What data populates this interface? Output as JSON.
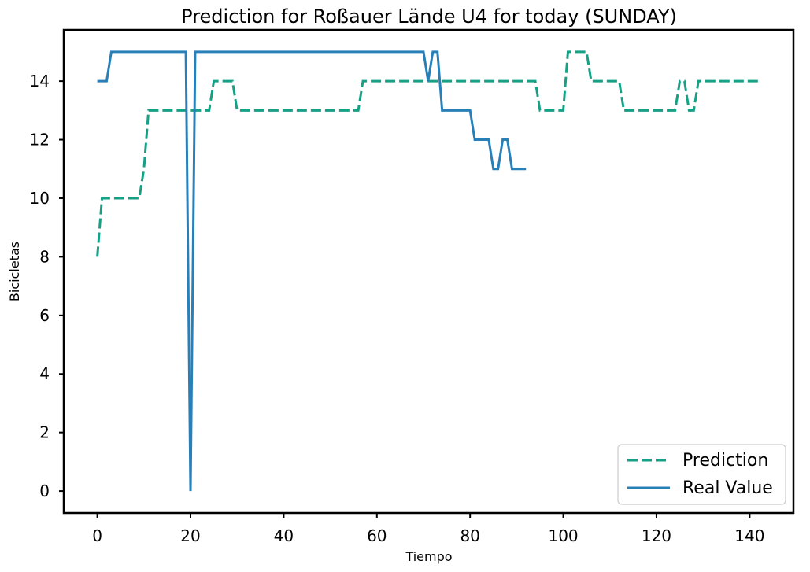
{
  "chart_data": {
    "type": "line",
    "title": "Prediction for Roßauer Lände U4 for today (SUNDAY)",
    "xlabel": "Tiempo",
    "ylabel": "Bicicletas",
    "xlim": [
      -7.2,
      149.4
    ],
    "ylim": [
      -0.75,
      15.75
    ],
    "xticks": [
      0,
      20,
      40,
      60,
      80,
      100,
      120,
      140
    ],
    "yticks": [
      0,
      2,
      4,
      6,
      8,
      10,
      12,
      14
    ],
    "grid": false,
    "legend": {
      "placement": "bottom-right",
      "entries": [
        "Prediction",
        "Real Value"
      ]
    },
    "series": [
      {
        "name": "Prediction",
        "color": "#16a085",
        "style": "dashed",
        "x": [
          0,
          1,
          2,
          3,
          4,
          5,
          6,
          7,
          8,
          9,
          10,
          11,
          12,
          13,
          14,
          15,
          16,
          17,
          18,
          19,
          20,
          21,
          22,
          23,
          24,
          25,
          26,
          27,
          28,
          29,
          30,
          31,
          32,
          33,
          34,
          35,
          36,
          37,
          38,
          39,
          40,
          41,
          42,
          43,
          44,
          45,
          46,
          47,
          48,
          49,
          50,
          51,
          52,
          53,
          54,
          55,
          56,
          57,
          58,
          59,
          60,
          61,
          62,
          63,
          64,
          65,
          66,
          67,
          68,
          69,
          70,
          71,
          72,
          73,
          74,
          75,
          76,
          77,
          78,
          79,
          80,
          81,
          82,
          83,
          84,
          85,
          86,
          87,
          88,
          89,
          90,
          91,
          92,
          93,
          94,
          95,
          96,
          97,
          98,
          99,
          100,
          101,
          102,
          103,
          104,
          105,
          106,
          107,
          108,
          109,
          110,
          111,
          112,
          113,
          114,
          115,
          116,
          117,
          118,
          119,
          120,
          121,
          122,
          123,
          124,
          125,
          126,
          127,
          128,
          129,
          130,
          131,
          132,
          133,
          134,
          135,
          136,
          137,
          138,
          139,
          140,
          141,
          142
        ],
        "values": [
          8,
          10,
          10,
          10,
          10,
          10,
          10,
          10,
          10,
          10,
          11,
          13,
          13,
          13,
          13,
          13,
          13,
          13,
          13,
          13,
          13,
          13,
          13,
          13,
          13,
          14,
          14,
          14,
          14,
          14,
          13,
          13,
          13,
          13,
          13,
          13,
          13,
          13,
          13,
          13,
          13,
          13,
          13,
          13,
          13,
          13,
          13,
          13,
          13,
          13,
          13,
          13,
          13,
          13,
          13,
          13,
          13,
          14,
          14,
          14,
          14,
          14,
          14,
          14,
          14,
          14,
          14,
          14,
          14,
          14,
          14,
          14,
          14,
          14,
          14,
          14,
          14,
          14,
          14,
          14,
          14,
          14,
          14,
          14,
          14,
          14,
          14,
          14,
          14,
          14,
          14,
          14,
          14,
          14,
          14,
          13,
          13,
          13,
          13,
          13,
          13,
          15,
          15,
          15,
          15,
          15,
          14,
          14,
          14,
          14,
          14,
          14,
          14,
          13,
          13,
          13,
          13,
          13,
          13,
          13,
          13,
          13,
          13,
          13,
          13,
          14,
          14,
          13,
          13,
          14,
          14,
          14,
          14,
          14,
          14,
          14,
          14,
          14,
          14,
          14,
          14,
          14,
          14
        ]
      },
      {
        "name": "Real Value",
        "color": "#2980b9",
        "style": "solid",
        "x": [
          0,
          1,
          2,
          3,
          4,
          5,
          6,
          7,
          8,
          9,
          10,
          11,
          12,
          13,
          14,
          15,
          16,
          17,
          18,
          19,
          20,
          21,
          22,
          23,
          24,
          25,
          26,
          27,
          28,
          29,
          30,
          31,
          32,
          33,
          34,
          35,
          36,
          37,
          38,
          39,
          40,
          41,
          42,
          43,
          44,
          45,
          46,
          47,
          48,
          49,
          50,
          51,
          52,
          53,
          54,
          55,
          56,
          57,
          58,
          59,
          60,
          61,
          62,
          63,
          64,
          65,
          66,
          67,
          68,
          69,
          70,
          71,
          72,
          73,
          74,
          75,
          76,
          77,
          78,
          79,
          80,
          81,
          82,
          83,
          84,
          85,
          86,
          87,
          88,
          89,
          90,
          91,
          92
        ],
        "values": [
          14,
          14,
          14,
          15,
          15,
          15,
          15,
          15,
          15,
          15,
          15,
          15,
          15,
          15,
          15,
          15,
          15,
          15,
          15,
          15,
          0,
          15,
          15,
          15,
          15,
          15,
          15,
          15,
          15,
          15,
          15,
          15,
          15,
          15,
          15,
          15,
          15,
          15,
          15,
          15,
          15,
          15,
          15,
          15,
          15,
          15,
          15,
          15,
          15,
          15,
          15,
          15,
          15,
          15,
          15,
          15,
          15,
          15,
          15,
          15,
          15,
          15,
          15,
          15,
          15,
          15,
          15,
          15,
          15,
          15,
          15,
          14,
          15,
          15,
          13,
          13,
          13,
          13,
          13,
          13,
          13,
          12,
          12,
          12,
          12,
          11,
          11,
          12,
          12,
          11,
          11,
          11,
          11
        ]
      }
    ]
  }
}
